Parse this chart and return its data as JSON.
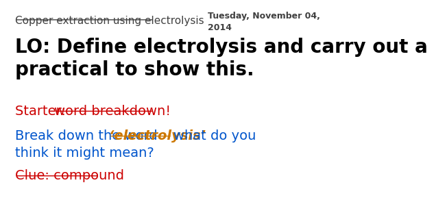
{
  "background_color": "#ffffff",
  "title_text": "Copper extraction using electrolysis",
  "title_color": "#404040",
  "title_fontsize": 11,
  "date_text": "Tuesday, November 04,\n2014",
  "date_color": "#404040",
  "date_fontsize": 9,
  "lo_text": "LO: Define electrolysis and carry out a\npractical to show this.",
  "lo_color": "#000000",
  "lo_fontsize": 20,
  "starter_prefix": "Starter: ",
  "starter_underline": "word breakdown!",
  "starter_color": "#cc0000",
  "starter_fontsize": 14,
  "break_text_before": "Break down the word ",
  "break_text_italic": "‘electrolysis’ ",
  "break_text_after": "what do you",
  "break_text_line2": "think it might mean?",
  "break_color_normal": "#0055cc",
  "break_color_italic": "#cc7700",
  "break_fontsize": 14,
  "clue_text": "Clue: compound",
  "clue_color": "#cc0000",
  "clue_fontsize": 14
}
